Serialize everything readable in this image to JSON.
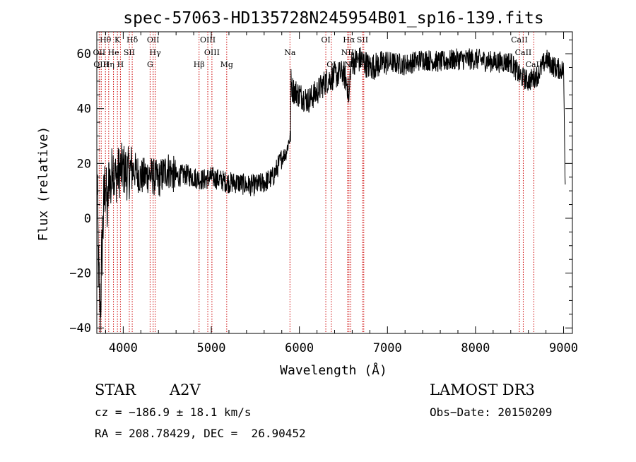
{
  "chart_data": {
    "type": "line",
    "title": "spec-57063-HD135728N245954B01_sp16-139.fits",
    "xlabel": "Wavelength (Å)",
    "ylabel": "Flux (relative)",
    "xlim": [
      3700,
      9100
    ],
    "ylim": [
      -42,
      68
    ],
    "x_ticks": [
      4000,
      5000,
      6000,
      7000,
      8000,
      9000
    ],
    "y_ticks": [
      -40,
      -20,
      0,
      20,
      40,
      60
    ],
    "grid": false,
    "line_color": "#000000",
    "marker_color": "#cc0000",
    "series": [
      {
        "x": [
          3700,
          3720,
          3740,
          3760,
          3780,
          3800,
          3820,
          3840,
          3860,
          3880,
          3900,
          3950,
          4000,
          4050,
          4100,
          4150,
          4200,
          4300,
          4400,
          4500,
          4600,
          4700,
          4800,
          4900,
          5000,
          5100,
          5200,
          5300,
          5400,
          5500,
          5600,
          5700,
          5800,
          5850,
          5880,
          5900,
          5905,
          5920,
          6000,
          6100,
          6200,
          6300,
          6400,
          6500,
          6550,
          6563,
          6580,
          6600,
          6700,
          6800,
          6900,
          7000,
          7200,
          7400,
          7600,
          7800,
          8000,
          8200,
          8400,
          8500,
          8600,
          8700,
          8800,
          8900,
          9000,
          9020
        ],
        "values": [
          20,
          -20,
          -35,
          -10,
          5,
          15,
          0,
          18,
          10,
          22,
          14,
          17,
          18,
          16,
          18,
          17,
          15,
          16,
          14,
          18,
          15,
          16,
          15,
          14,
          15,
          14,
          13,
          13,
          12,
          12,
          13,
          15,
          22,
          24,
          28,
          30,
          50,
          47,
          45,
          43,
          46,
          50,
          52,
          53,
          48,
          42,
          55,
          57,
          58,
          55,
          56,
          57,
          56,
          58,
          57,
          58,
          58,
          57,
          57,
          52,
          50,
          52,
          58,
          55,
          54,
          10
        ]
      }
    ],
    "line_markers": [
      {
        "name": "Hθ",
        "x": 3798,
        "row": 0
      },
      {
        "name": "K",
        "x": 3934,
        "row": 0
      },
      {
        "name": "Hδ",
        "x": 4102,
        "row": 0
      },
      {
        "name": "OII",
        "x": 4340,
        "row": 0
      },
      {
        "name": "OIII",
        "x": 4960,
        "row": 0
      },
      {
        "name": "OI",
        "x": 6300,
        "row": 0
      },
      {
        "name": "Hα",
        "x": 6563,
        "row": 0
      },
      {
        "name": "SII",
        "x": 6717,
        "row": 0
      },
      {
        "name": "CaII",
        "x": 8498,
        "row": 0
      },
      {
        "name": "OII",
        "x": 3727,
        "row": 1
      },
      {
        "name": "He",
        "x": 3889,
        "row": 1
      },
      {
        "name": "SII",
        "x": 4069,
        "row": 1
      },
      {
        "name": "Hγ",
        "x": 4363,
        "row": 1
      },
      {
        "name": "OIII",
        "x": 5007,
        "row": 1
      },
      {
        "name": "Na",
        "x": 5893,
        "row": 1
      },
      {
        "name": "NII",
        "x": 6548,
        "row": 1
      },
      {
        "name": "CaII",
        "x": 8542,
        "row": 1
      },
      {
        "name": "OIII",
        "x": 3750,
        "row": 2
      },
      {
        "name": "Hη",
        "x": 3835,
        "row": 2
      },
      {
        "name": "H",
        "x": 3968,
        "row": 2
      },
      {
        "name": "G",
        "x": 4305,
        "row": 2
      },
      {
        "name": "Hβ",
        "x": 4861,
        "row": 2
      },
      {
        "name": "Mg",
        "x": 5175,
        "row": 2
      },
      {
        "name": "OI",
        "x": 6363,
        "row": 2
      },
      {
        "name": "NII",
        "x": 6583,
        "row": 2
      },
      {
        "name": "SII",
        "x": 6731,
        "row": 2
      },
      {
        "name": "CaII",
        "x": 8662,
        "row": 2
      }
    ]
  },
  "info": {
    "class": "STAR",
    "subclass": "A2V",
    "survey": "LAMOST DR3",
    "cz": "cz = −186.9 ± 18.1 km/s",
    "obs_date": "Obs−Date: 20150209",
    "coords": "RA = 208.78429, DEC =  26.90452"
  }
}
